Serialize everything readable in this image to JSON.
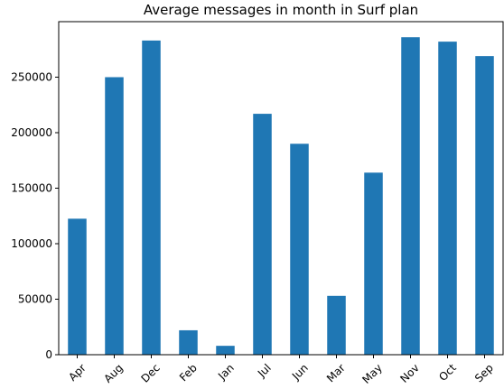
{
  "chart_data": {
    "type": "bar",
    "title": "Average messages in month in Surf plan",
    "xlabel": "",
    "ylabel": "",
    "categories": [
      "Apr",
      "Aug",
      "Dec",
      "Feb",
      "Jan",
      "Jul",
      "Jun",
      "Mar",
      "May",
      "Nov",
      "Oct",
      "Sep"
    ],
    "values": [
      122500,
      250000,
      283000,
      22000,
      8000,
      217000,
      190000,
      53000,
      164000,
      286000,
      282000,
      269000
    ],
    "ylim": [
      0,
      300000
    ],
    "yticks": [
      0,
      50000,
      100000,
      150000,
      200000,
      250000
    ],
    "ytick_labels": [
      "0",
      "50000",
      "100000",
      "150000",
      "200000",
      "250000"
    ],
    "bar_color": "#1f77b4",
    "grid": false,
    "legend": false
  }
}
